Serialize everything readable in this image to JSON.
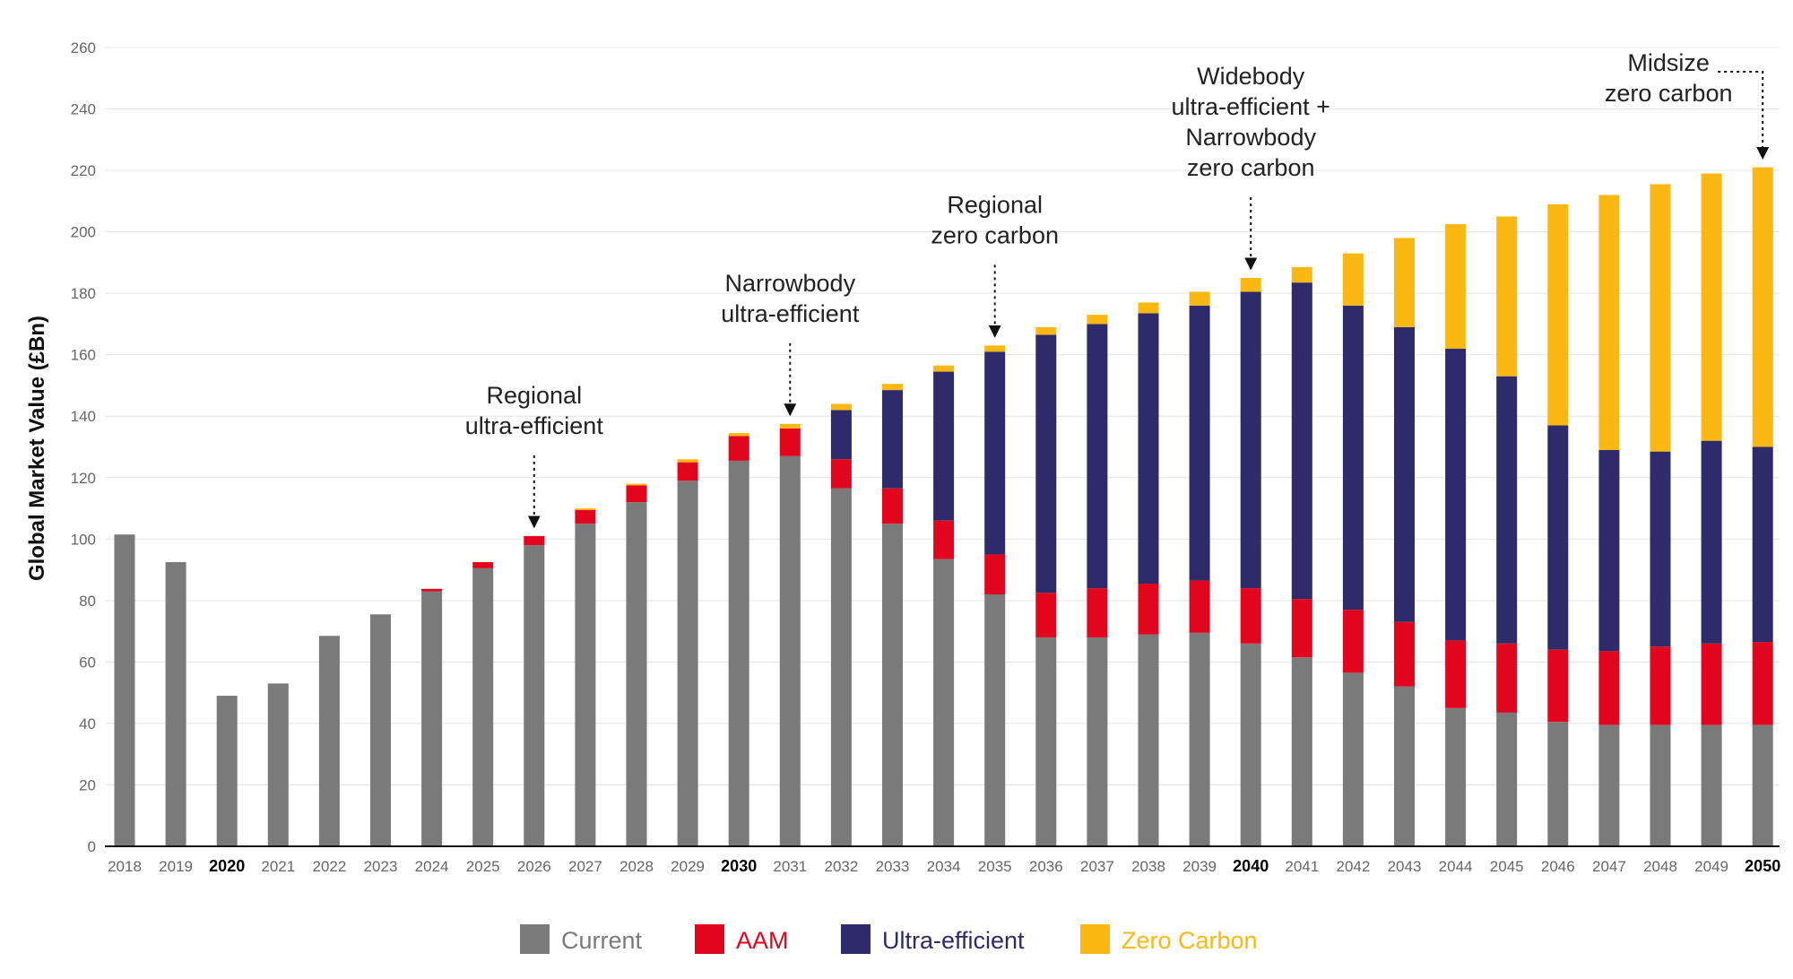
{
  "chart_data": {
    "type": "bar",
    "stacked": true,
    "ylabel": "Global Market Value (£Bn)",
    "xlabel": "",
    "ylim": [
      0,
      260
    ],
    "yticks": [
      0,
      20,
      40,
      60,
      80,
      100,
      120,
      140,
      160,
      180,
      200,
      220,
      240,
      260
    ],
    "grid": true,
    "legend_position": "bottom",
    "categories": [
      "2018",
      "2019",
      "2020",
      "2021",
      "2022",
      "2023",
      "2024",
      "2025",
      "2026",
      "2027",
      "2028",
      "2029",
      "2030",
      "2031",
      "2032",
      "2033",
      "2034",
      "2035",
      "2036",
      "2037",
      "2038",
      "2039",
      "2040",
      "2041",
      "2042",
      "2043",
      "2044",
      "2045",
      "2046",
      "2047",
      "2048",
      "2049",
      "2050"
    ],
    "bold_categories": [
      "2020",
      "2030",
      "2040",
      "2050"
    ],
    "series": [
      {
        "name": "Current",
        "color": "#7a7a7a",
        "values": [
          101.5,
          92.5,
          49,
          53,
          68.5,
          75.5,
          83,
          90.5,
          98,
          105,
          112,
          119,
          125.5,
          127,
          116.5,
          105,
          93.5,
          82,
          68,
          68,
          69,
          69.5,
          66,
          61.5,
          56.5,
          52,
          45,
          43.5,
          40.5,
          39.5,
          39.5,
          39.5,
          39.5
        ]
      },
      {
        "name": "AAM",
        "color": "#e1061e",
        "values": [
          0,
          0,
          0,
          0,
          0,
          0,
          0.8,
          2,
          3,
          4.5,
          5.5,
          6,
          8,
          9,
          9.5,
          11.5,
          12.5,
          13,
          14.5,
          16,
          16.5,
          17,
          18,
          19,
          20.5,
          21,
          22,
          22.5,
          23.5,
          24,
          25.5,
          26.5,
          27
        ]
      },
      {
        "name": "Ultra-efficient",
        "color": "#2f2a6a",
        "values": [
          0,
          0,
          0,
          0,
          0,
          0,
          0,
          0,
          0,
          0,
          0,
          0,
          0,
          0,
          16,
          32,
          48.5,
          66,
          84,
          86,
          88,
          89.5,
          96.5,
          103,
          99,
          96,
          95,
          87,
          73,
          65.5,
          63.5,
          66,
          63.5
        ]
      },
      {
        "name": "Zero Carbon",
        "color": "#fbb712",
        "values": [
          0,
          0,
          0,
          0,
          0,
          0,
          0,
          0,
          0,
          0.5,
          0.5,
          1,
          1,
          1.5,
          2,
          2,
          2,
          2,
          2.5,
          3,
          3.5,
          4.5,
          4.5,
          5,
          17,
          29,
          40.5,
          52,
          72,
          83,
          87,
          87,
          91
        ]
      }
    ],
    "annotations": [
      {
        "category": "2026",
        "lines": [
          "Regional",
          "ultra-efficient"
        ]
      },
      {
        "category": "2031",
        "lines": [
          "Narrowbody",
          "ultra-efficient"
        ]
      },
      {
        "category": "2035",
        "lines": [
          "Regional",
          "zero carbon"
        ]
      },
      {
        "category": "2040",
        "lines": [
          "Widebody",
          "ultra-efficient +",
          "Narrowbody",
          "zero carbon"
        ]
      },
      {
        "category": "2050",
        "lines": [
          "Midsize",
          "zero carbon"
        ]
      }
    ]
  }
}
